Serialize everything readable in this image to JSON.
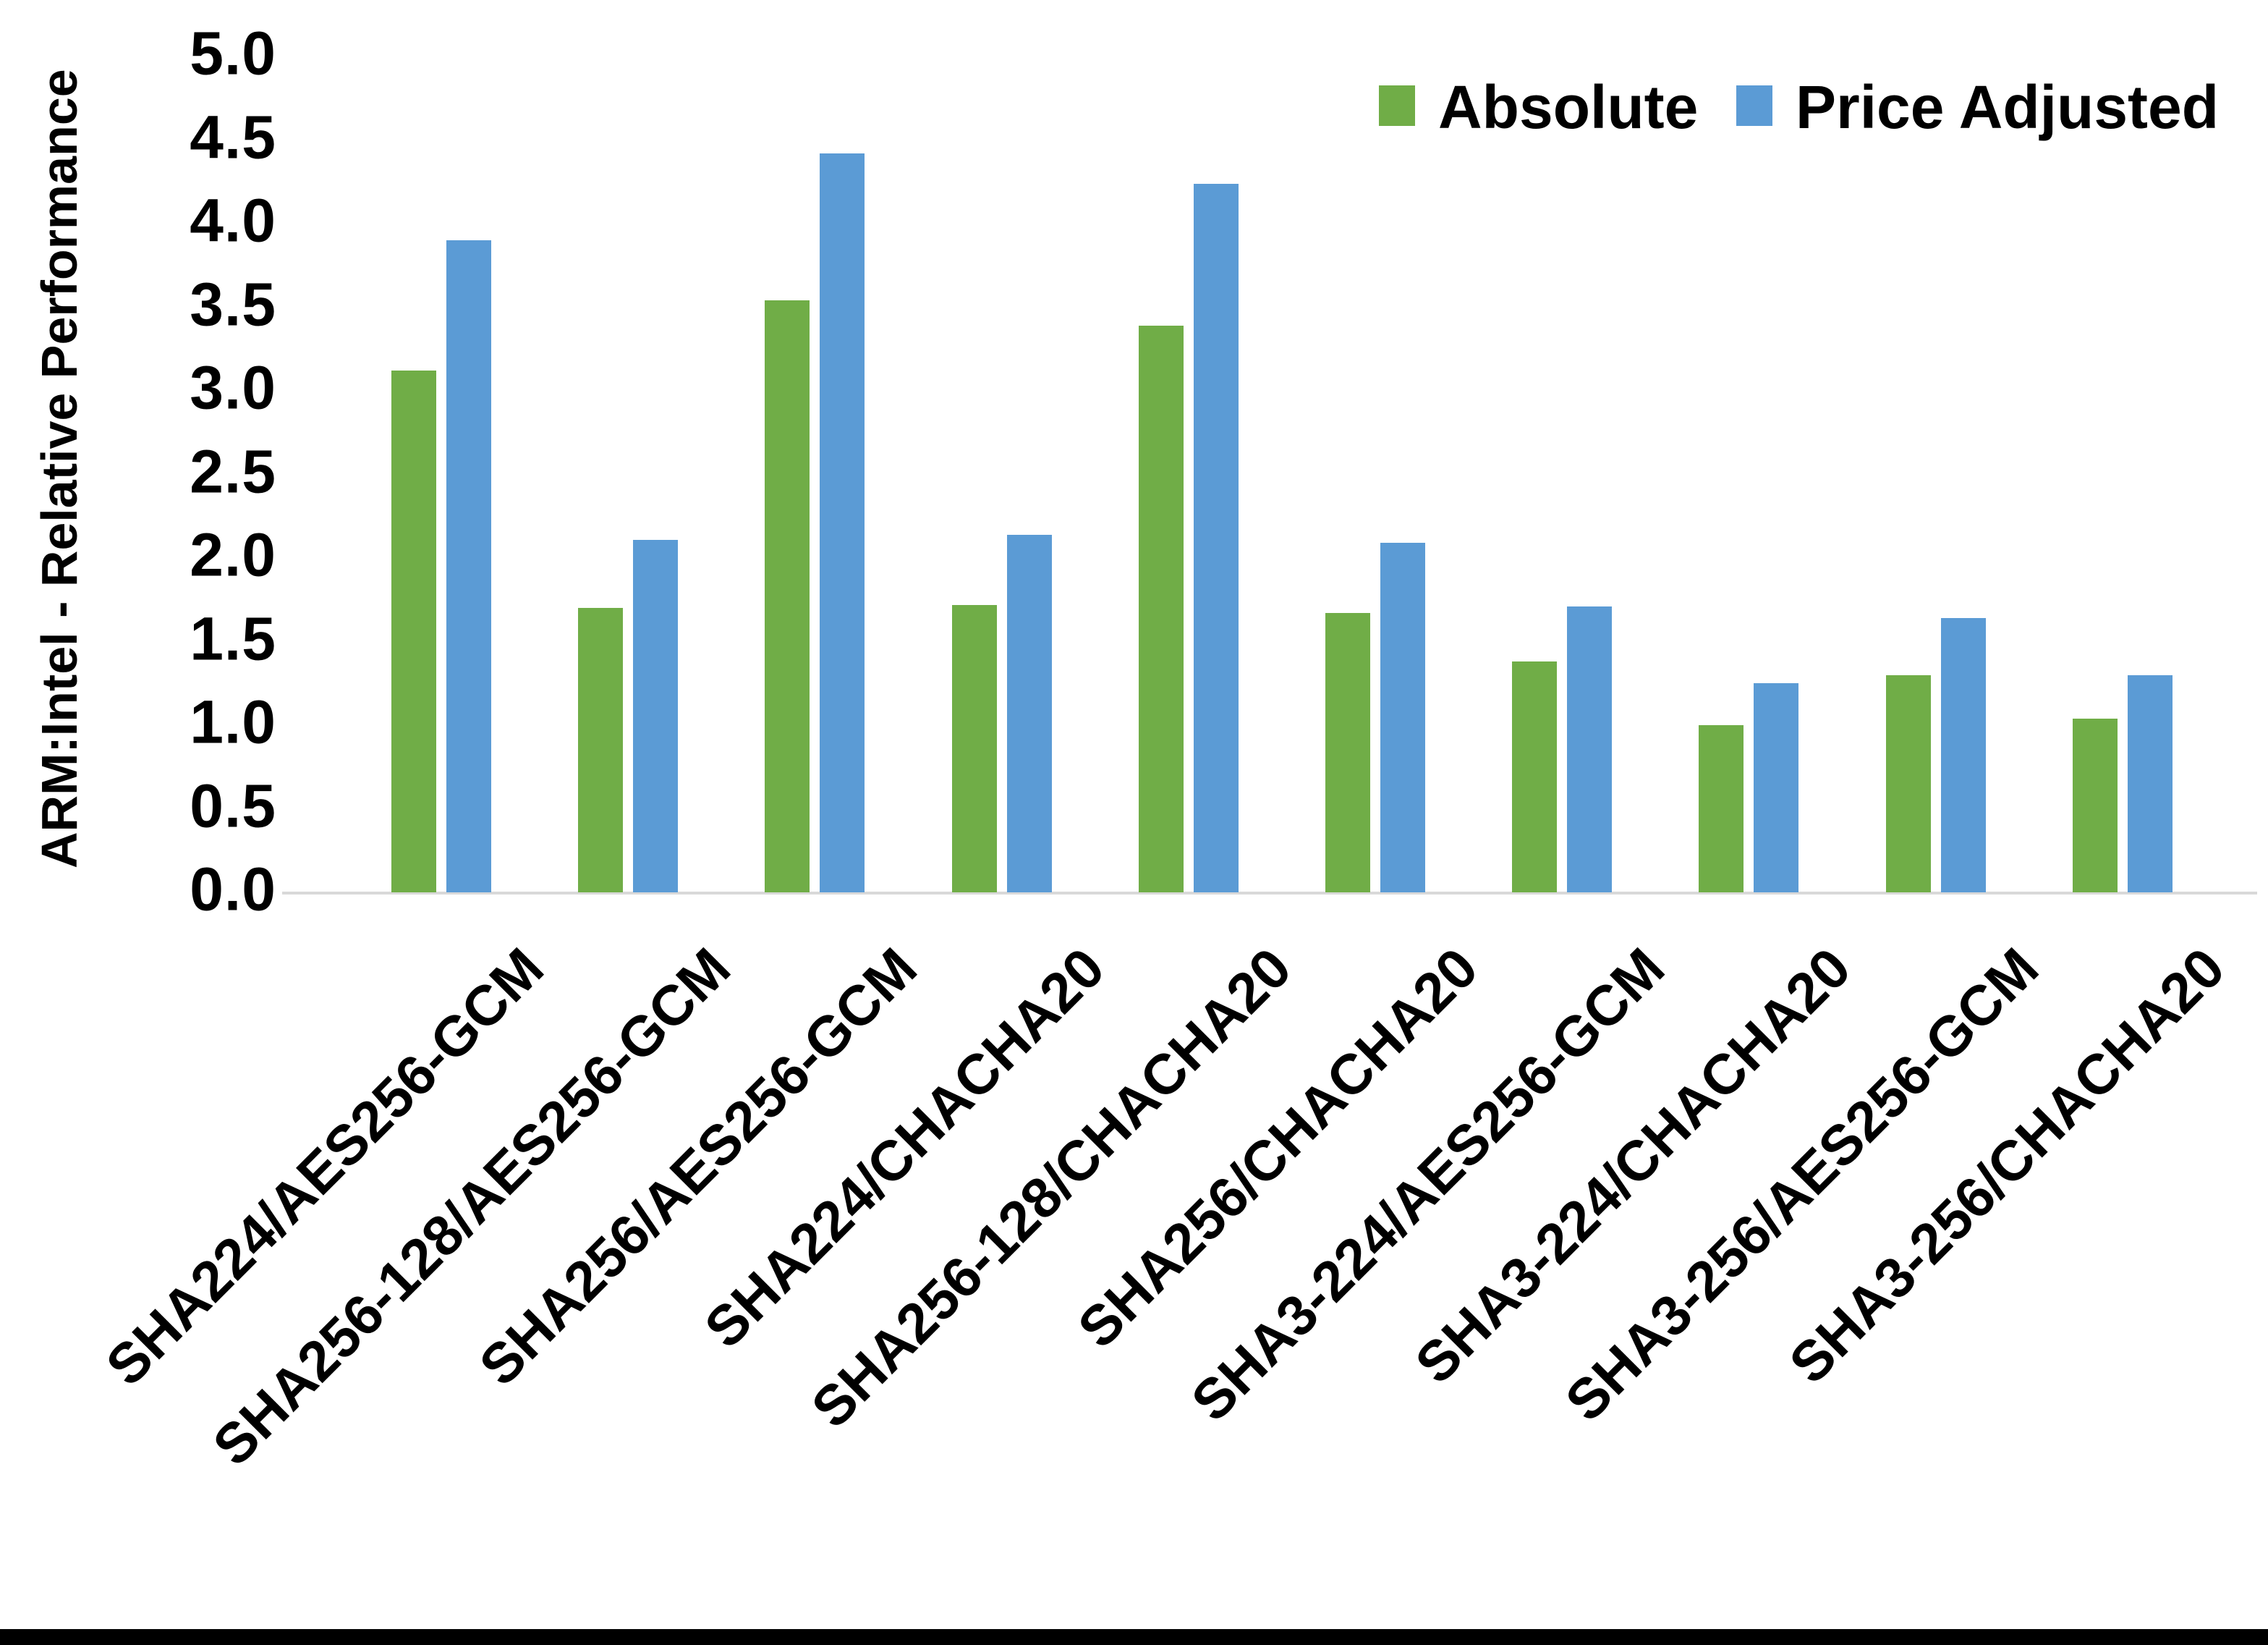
{
  "chart_data": {
    "type": "bar",
    "title": "",
    "xlabel": "",
    "ylabel": "ARM:Intel - Relative Performance",
    "ylim": [
      0.0,
      5.0
    ],
    "ytick_step": 0.5,
    "yticks": [
      "0.0",
      "0.5",
      "1.0",
      "1.5",
      "2.0",
      "2.5",
      "3.0",
      "3.5",
      "4.0",
      "4.5",
      "5.0"
    ],
    "grid": false,
    "legend_position": "top-right",
    "categories": [
      "SHA224/AES256-GCM",
      "SHA256-128/AES256-GCM",
      "SHA256/AES256-GCM",
      "SHA224/CHACHA20",
      "SHA256-128/CHACHA20",
      "SHA256/CHACHA20",
      "SHA3-224/AES256-GCM",
      "SHA3-224/CHACHA20",
      "SHA3-256/AES256-GCM",
      "SHA3-256/CHACHA20"
    ],
    "series": [
      {
        "name": "Absolute",
        "color": "#70AD47",
        "values": [
          3.12,
          1.7,
          3.54,
          1.72,
          3.39,
          1.67,
          1.38,
          1.0,
          1.3,
          1.04
        ]
      },
      {
        "name": "Price Adjusted",
        "color": "#5B9BD5",
        "values": [
          3.9,
          2.11,
          4.42,
          2.14,
          4.24,
          2.09,
          1.71,
          1.25,
          1.64,
          1.3
        ]
      }
    ],
    "axis_line_color": "#D9D9D9",
    "text_color": "#000000"
  }
}
